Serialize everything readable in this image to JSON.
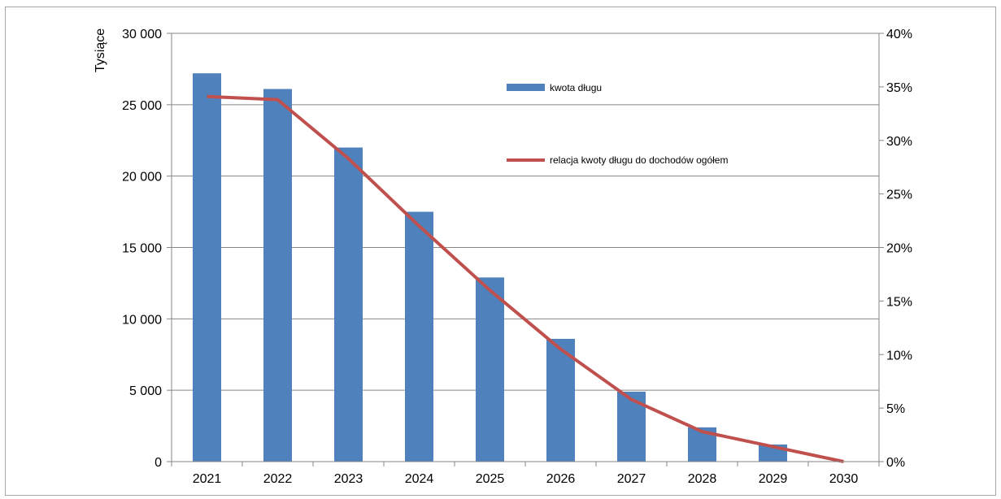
{
  "chart_data": {
    "type": "bar",
    "categories": [
      "2021",
      "2022",
      "2023",
      "2024",
      "2025",
      "2026",
      "2027",
      "2028",
      "2029",
      "2030"
    ],
    "series": [
      {
        "name": "kwota długu",
        "type": "bar",
        "axis": "left",
        "color": "#4f81bd",
        "values": [
          27200,
          26100,
          22000,
          17500,
          12900,
          8600,
          4900,
          2400,
          1200,
          0
        ]
      },
      {
        "name": "relacja kwoty długu do dochodów ogółem",
        "type": "line",
        "axis": "right",
        "color": "#c0504d",
        "values": [
          34.1,
          33.8,
          28.3,
          22.0,
          16.0,
          10.5,
          5.8,
          2.8,
          1.4,
          0.0
        ]
      }
    ],
    "ylabel": "Tysiące",
    "ylim": [
      0,
      30000
    ],
    "yticks": [
      0,
      5000,
      10000,
      15000,
      20000,
      25000,
      30000
    ],
    "ytick_labels": [
      "0",
      "5 000",
      "10 000",
      "15 000",
      "20 000",
      "25 000",
      "30 000"
    ],
    "y2lim": [
      0,
      40
    ],
    "y2ticks": [
      0,
      5,
      10,
      15,
      20,
      25,
      30,
      35,
      40
    ],
    "y2tick_labels": [
      "0%",
      "5%",
      "10%",
      "15%",
      "20%",
      "25%",
      "30%",
      "35%",
      "40%"
    ],
    "grid": true,
    "legend": "inside-top-center"
  }
}
